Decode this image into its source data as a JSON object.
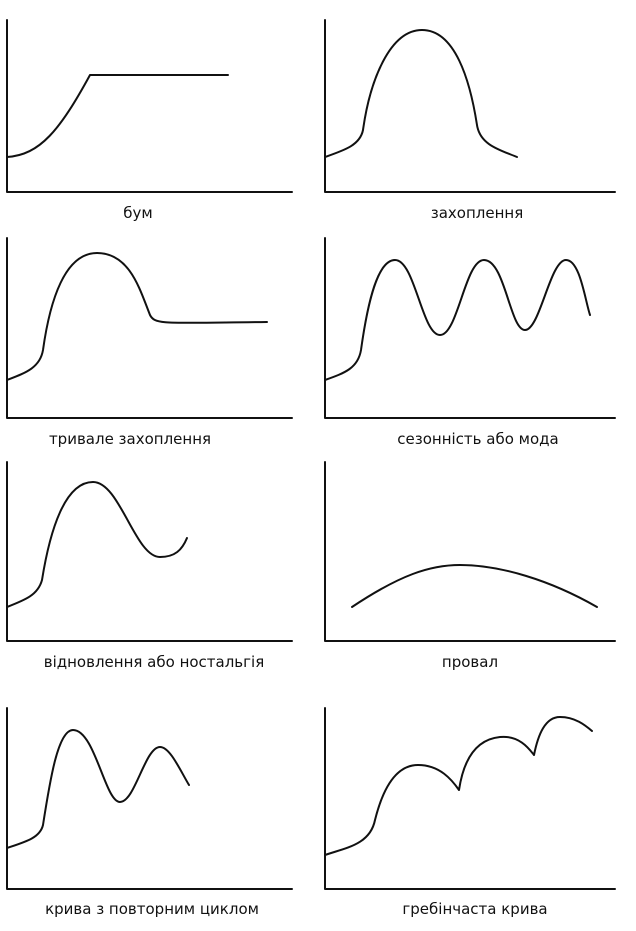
{
  "panels": [
    {
      "label": "бум"
    },
    {
      "label": "захоплення"
    },
    {
      "label": "тривале захоплення"
    },
    {
      "label": "сезонність або мода"
    },
    {
      "label": "відновлення або ностальгія"
    },
    {
      "label": "провал"
    },
    {
      "label": "крива з повторним циклом"
    },
    {
      "label": "гребінчаста крива"
    }
  ]
}
